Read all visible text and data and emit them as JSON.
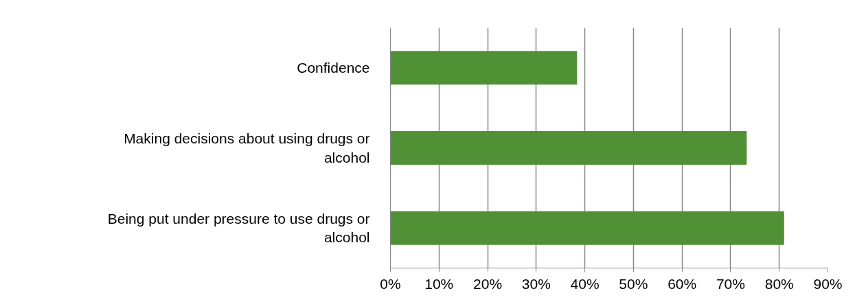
{
  "chart_data": {
    "type": "bar",
    "orientation": "horizontal",
    "categories": [
      "Confidence",
      "Making decisions about using drugs or alcohol",
      "Being put under pressure to use drugs or alcohol"
    ],
    "values": [
      38.4,
      73.3,
      81.0
    ],
    "color": "#519136",
    "xlim": [
      0,
      90
    ],
    "xticks": [
      {
        "value": 0,
        "label": "0%"
      },
      {
        "value": 10,
        "label": "10%"
      },
      {
        "value": 20,
        "label": "20%"
      },
      {
        "value": 30,
        "label": "30%"
      },
      {
        "value": 40,
        "label": "40%"
      },
      {
        "value": 50,
        "label": "50%"
      },
      {
        "value": 60,
        "label": "60%"
      },
      {
        "value": 70,
        "label": "70%"
      },
      {
        "value": 80,
        "label": "80%"
      },
      {
        "value": 90,
        "label": "90%"
      }
    ],
    "grid": "x"
  }
}
